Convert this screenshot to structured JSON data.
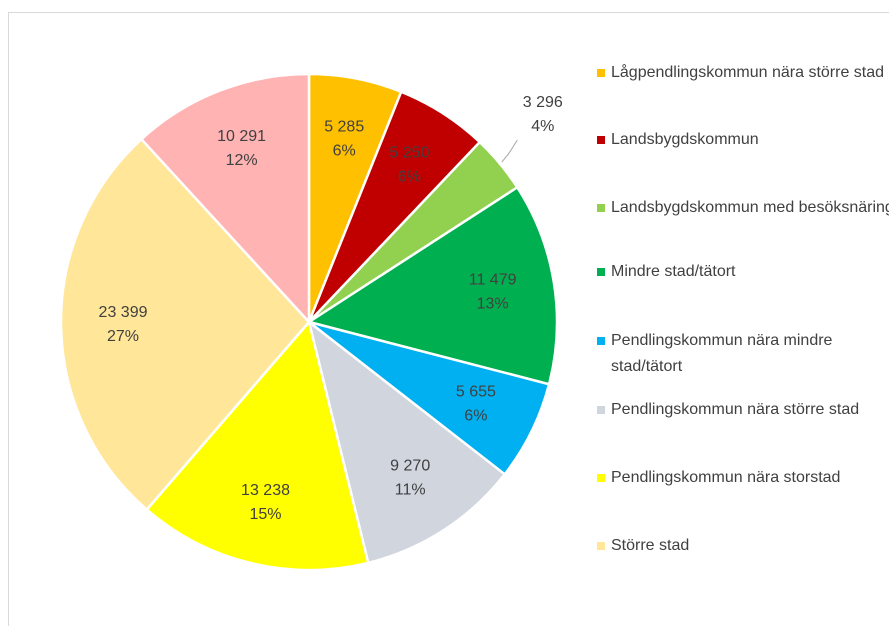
{
  "chart_data": {
    "type": "pie",
    "categories": [
      "Lågpendlingskommun nära större stad",
      "Landsbygdskommun",
      "Landsbygdskommun med besöksnäring",
      "Mindre stad/tätort",
      "Pendlingskommun nära mindre stad/tätort",
      "Pendlingskommun nära större stad",
      "Pendlingskommun nära storstad",
      "Större stad",
      null
    ],
    "values": [
      5285,
      5250,
      3296,
      11479,
      5655,
      9270,
      13238,
      23399,
      10291
    ],
    "value_labels": [
      "5 285",
      "5 250",
      "3 296",
      "11 479",
      "5 655",
      "9 270",
      "13 238",
      "23 399",
      "10 291"
    ],
    "percents": [
      6,
      6,
      4,
      13,
      6,
      11,
      15,
      27,
      12
    ],
    "percent_labels": [
      "6%",
      "6%",
      "4%",
      "13%",
      "6%",
      "11%",
      "15%",
      "27%",
      "12%"
    ],
    "colors": [
      "#FFC000",
      "#C00000",
      "#92D050",
      "#00B050",
      "#00B0F0",
      "#D0D5DE",
      "#FFFF00",
      "#FFE699",
      "#FFB3B3"
    ],
    "legend": "right"
  }
}
